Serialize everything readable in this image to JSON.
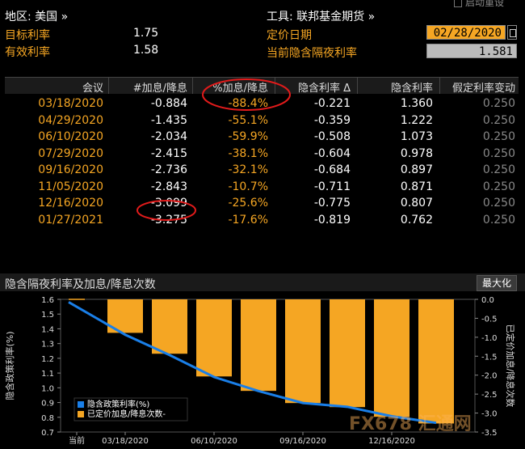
{
  "header": {
    "region_label": "地区: 美国 »",
    "tool_label": "工具: 联邦基金期货 »",
    "top_button": "启动重设",
    "target_rate_label": "目标利率",
    "target_rate_value": "1.75",
    "effective_rate_label": "有效利率",
    "effective_rate_value": "1.58",
    "pricing_date_label": "定价日期",
    "pricing_date_value": "02/28/2020",
    "implied_rate_label": "当前隐含隔夜利率",
    "implied_rate_value": "1.581"
  },
  "table": {
    "columns": [
      "会议",
      "#加息/降息",
      "%加息/降息",
      "隐含利率 Δ",
      "隐含利率",
      "假定利率变动"
    ],
    "rows": [
      {
        "meeting": "03/18/2020",
        "num": "-0.884",
        "pct": "-88.4%",
        "delta": "-0.221",
        "rate": "1.360",
        "assumed": "0.250"
      },
      {
        "meeting": "04/29/2020",
        "num": "-1.435",
        "pct": "-55.1%",
        "delta": "-0.359",
        "rate": "1.222",
        "assumed": "0.250"
      },
      {
        "meeting": "06/10/2020",
        "num": "-2.034",
        "pct": "-59.9%",
        "delta": "-0.508",
        "rate": "1.073",
        "assumed": "0.250"
      },
      {
        "meeting": "07/29/2020",
        "num": "-2.415",
        "pct": "-38.1%",
        "delta": "-0.604",
        "rate": "0.978",
        "assumed": "0.250"
      },
      {
        "meeting": "09/16/2020",
        "num": "-2.736",
        "pct": "-32.1%",
        "delta": "-0.684",
        "rate": "0.897",
        "assumed": "0.250"
      },
      {
        "meeting": "11/05/2020",
        "num": "-2.843",
        "pct": "-10.7%",
        "delta": "-0.711",
        "rate": "0.871",
        "assumed": "0.250"
      },
      {
        "meeting": "12/16/2020",
        "num": "-3.099",
        "pct": "-25.6%",
        "delta": "-0.775",
        "rate": "0.807",
        "assumed": "0.250"
      },
      {
        "meeting": "01/27/2021",
        "num": "-3.275",
        "pct": "-17.6%",
        "delta": "-0.819",
        "rate": "0.762",
        "assumed": "0.250"
      }
    ]
  },
  "chart": {
    "title": "隐含隔夜利率及加息/降息次数",
    "max_button": "最大化",
    "watermark": "FX678 汇通网"
  },
  "chart_data": {
    "type": "bar",
    "ylabel_left": "隐含政策利率(%)",
    "ylabel_right": "已定价加息/降息次数",
    "left_ylim": [
      0.7,
      1.6
    ],
    "left_ticks": [
      "1.6",
      "1.5",
      "1.4",
      "1.3",
      "1.2",
      "1.1",
      "1.0",
      "0.9",
      "0.8",
      "0.7"
    ],
    "right_ylim": [
      -3.5,
      0.0
    ],
    "right_ticks": [
      "0.0",
      "-0.5",
      "-1.0",
      "-1.5",
      "-2.0",
      "-2.5",
      "-3.0",
      "-3.5"
    ],
    "x_tick_labels": [
      "当前",
      "03/18/2020",
      "06/10/2020",
      "09/16/2020",
      "12/16/2020"
    ],
    "categories": [
      "当前",
      "03/18/2020",
      "04/29/2020",
      "06/10/2020",
      "07/29/2020",
      "09/16/2020",
      "11/05/2020",
      "12/16/2020",
      "01/27/2021"
    ],
    "legend": [
      {
        "name": "隐含政策利率(%)",
        "color": "#1a7fe8"
      },
      {
        "name": "已定价加息/降息次数-",
        "color": "#f5a623"
      }
    ],
    "legend_position": "bottom-left",
    "series": [
      {
        "name": "隐含政策利率(%)",
        "type": "line",
        "color": "#1a7fe8",
        "values": [
          1.581,
          1.36,
          1.222,
          1.073,
          0.978,
          0.897,
          0.871,
          0.807,
          0.762
        ]
      },
      {
        "name": "已定价加息/降息次数-",
        "type": "bar",
        "color": "#f5a623",
        "values": [
          0,
          -0.884,
          -1.435,
          -2.034,
          -2.415,
          -2.736,
          -2.843,
          -3.099,
          -3.275
        ]
      }
    ]
  }
}
